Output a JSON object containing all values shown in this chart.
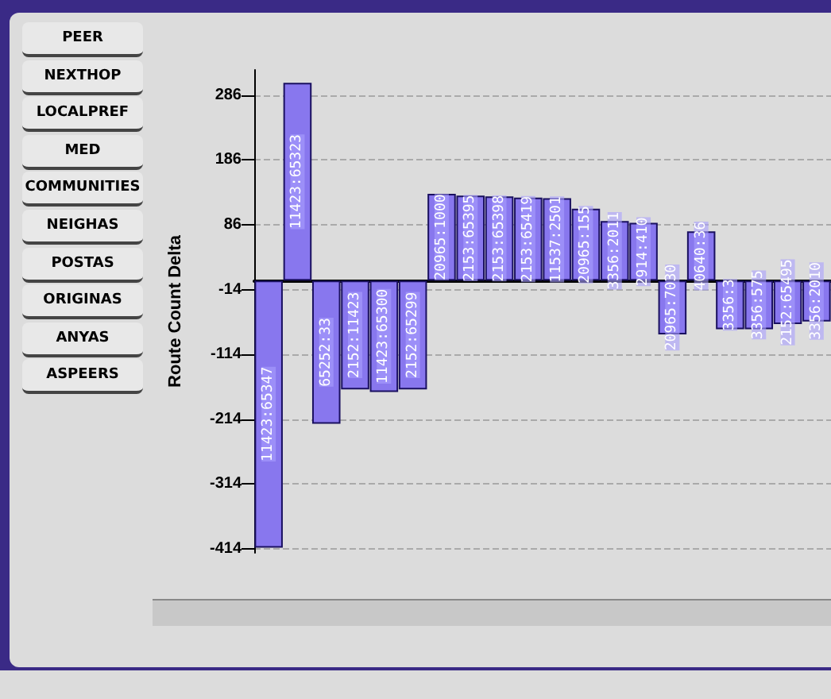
{
  "chart_data": {
    "type": "bar",
    "ylabel": "Route Count Delta",
    "categories": [
      "11423:65347",
      "11423:65323",
      "65252:33",
      "2152:11423",
      "11423:65300",
      "2152:65299",
      "20965:1000",
      "2153:65395",
      "2153:65398",
      "2153:65419",
      "11537:2501",
      "20965:155",
      "3356:2011",
      "2914:410",
      "20965:7030",
      "40640:36",
      "3356:3",
      "3356:575",
      "2152:65495",
      "3356:2010"
    ],
    "values": [
      -412,
      305,
      -221,
      -168,
      -172,
      -168,
      134,
      131,
      130,
      128,
      127,
      111,
      92,
      89,
      -83,
      76,
      -75,
      -75,
      -67,
      -63
    ],
    "color": "#8877ee",
    "ylim": [
      -420,
      325
    ],
    "yticks": [
      -414,
      -314,
      -214,
      -114,
      -14,
      86,
      186,
      286
    ],
    "grid": "y",
    "tick_labels": "y",
    "annotations": [
      "PEER",
      "NEXTHOP",
      "LOCALPREF",
      "MED",
      "COMMUNITIES",
      "NEIGHAS",
      "POSTAS",
      "ORIGINAS",
      "ANYAS",
      "ASPEERS"
    ]
  }
}
